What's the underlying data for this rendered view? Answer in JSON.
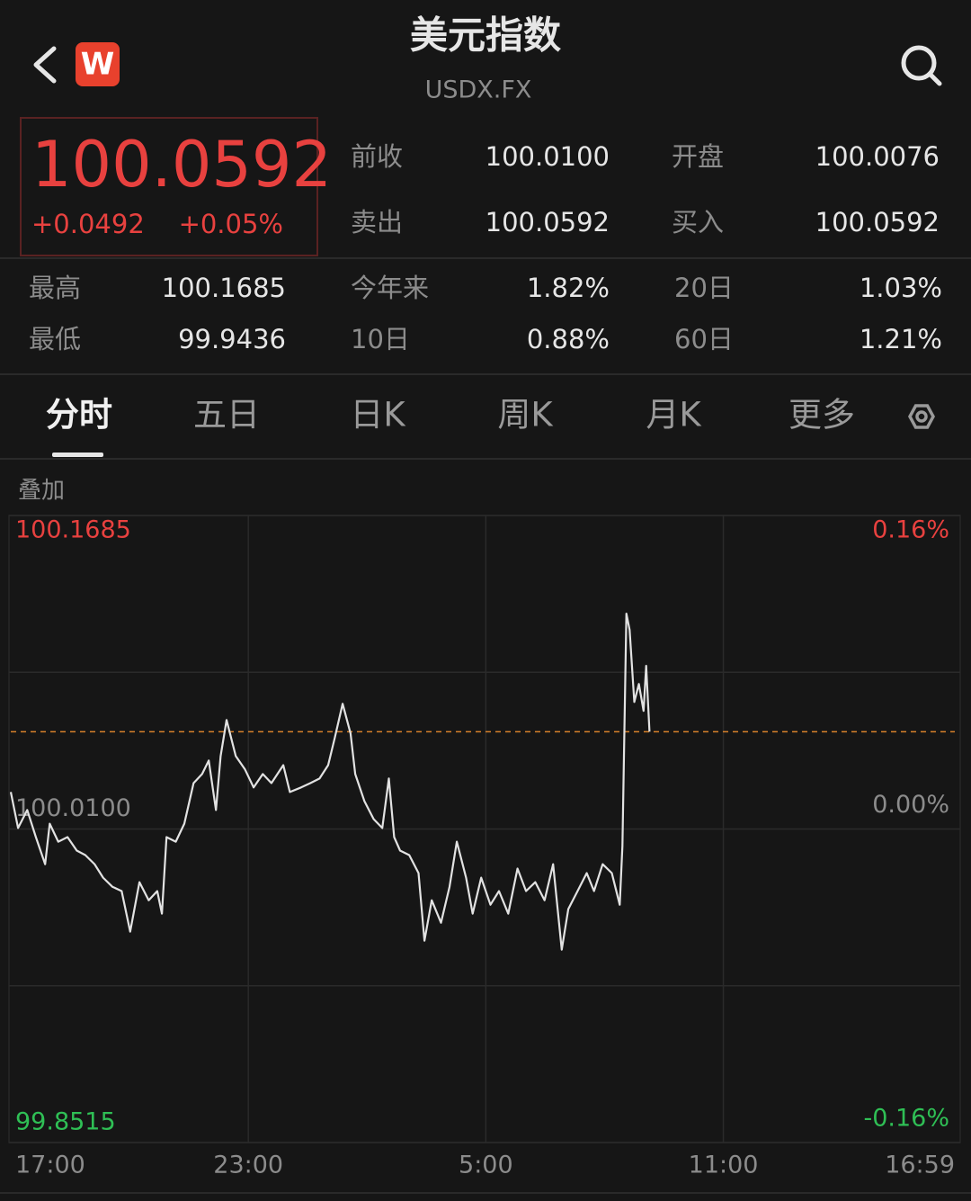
{
  "header": {
    "title": "美元指数",
    "subtitle": "USDX.FX",
    "logo": "W"
  },
  "quote": {
    "price": "100.0592",
    "change": "+0.0492",
    "change_pct": "+0.05%"
  },
  "stats": [
    [
      {
        "label": "前收",
        "value": "100.0100"
      },
      {
        "label": "开盘",
        "value": "100.0076"
      }
    ],
    [
      {
        "label": "卖出",
        "value": "100.0592"
      },
      {
        "label": "买入",
        "value": "100.0592"
      }
    ]
  ],
  "returns": [
    [
      {
        "label": "最高",
        "value": "100.1685"
      },
      {
        "label": "今年来",
        "value": "1.82%"
      },
      {
        "label": "20日",
        "value": "1.03%"
      }
    ],
    [
      {
        "label": "最低",
        "value": "99.9436"
      },
      {
        "label": "10日",
        "value": "0.88%"
      },
      {
        "label": "60日",
        "value": "1.21%"
      }
    ]
  ],
  "tabs": [
    "分时",
    "五日",
    "日K",
    "周K",
    "月K",
    "更多"
  ],
  "overlay": "叠加",
  "chart_data": {
    "type": "line",
    "x": [
      0,
      11,
      25,
      38,
      52,
      59,
      72,
      86,
      100,
      113,
      127,
      140,
      154,
      168,
      181,
      195,
      209,
      222,
      229,
      236,
      250,
      263,
      277,
      290,
      300,
      311,
      318,
      327,
      341,
      355,
      368,
      382,
      395,
      413,
      423,
      440,
      454,
      468,
      481,
      491,
      503,
      515,
      522,
      536,
      550,
      563,
      573,
      581,
      590,
      604,
      618,
      627,
      638,
      652,
      665,
      676,
      690,
      700,
      713,
      727,
      740,
      754,
      768,
      781,
      795,
      809,
      822,
      835,
      845,
      859,
      873,
      884,
      897,
      911,
      923,
      927,
      933,
      938,
      945,
      952,
      959,
      963,
      968
    ],
    "series": [
      {
        "color": "#e2e2e2",
        "values": [
          100.0287,
          100.0105,
          100.0196,
          100.0059,
          99.9922,
          100.0127,
          100.0036,
          100.0059,
          99.9991,
          99.9968,
          99.9922,
          99.9854,
          99.9808,
          99.9786,
          99.9581,
          99.9831,
          99.974,
          99.9786,
          99.9672,
          100.0059,
          100.0036,
          100.0127,
          100.0332,
          100.0378,
          100.0446,
          100.0196,
          100.0469,
          100.0651,
          100.0469,
          100.0401,
          100.031,
          100.0378,
          100.0332,
          100.0423,
          100.0287,
          100.031,
          100.0332,
          100.0355,
          100.0423,
          100.056,
          100.0733,
          100.0583,
          100.0378,
          100.0241,
          100.015,
          100.0105,
          100.0355,
          100.0059,
          99.9991,
          99.9968,
          99.9877,
          99.9535,
          99.974,
          99.9626,
          99.9808,
          100.0036,
          99.9854,
          99.9672,
          99.9854,
          99.9717,
          99.9786,
          99.9672,
          99.99,
          99.9786,
          99.9831,
          99.974,
          99.9922,
          99.949,
          99.9695,
          99.9786,
          99.9877,
          99.9786,
          99.9922,
          99.9877,
          99.9717,
          100.0014,
          100.1189,
          100.1107,
          100.0742,
          100.0833,
          100.0697,
          100.0925,
          100.0592
        ]
      }
    ],
    "reference_line": {
      "value": 100.0592,
      "color": "#d9822b"
    },
    "xlim": [
      0,
      1439
    ],
    "xticks": [
      {
        "value": 0,
        "label": "17:00"
      },
      {
        "value": 360,
        "label": "23:00"
      },
      {
        "value": 720,
        "label": "5:00"
      },
      {
        "value": 1080,
        "label": "11:00"
      },
      {
        "value": 1439,
        "label": "16:59"
      }
    ],
    "ylim": [
      99.8515,
      100.1685
    ],
    "yticks": [
      {
        "value": 100.1685,
        "label": "100.1685"
      },
      {
        "value": 100.01,
        "label": "100.0100"
      },
      {
        "value": 99.8515,
        "label": "99.8515"
      }
    ],
    "y2lim": [
      -0.16,
      0.16
    ],
    "y2ticks": [
      {
        "value": 0.16,
        "label": "0.16%"
      },
      {
        "value": 0,
        "label": "0.00%"
      },
      {
        "value": -0.16,
        "label": "-0.16%"
      }
    ],
    "grid": true
  }
}
